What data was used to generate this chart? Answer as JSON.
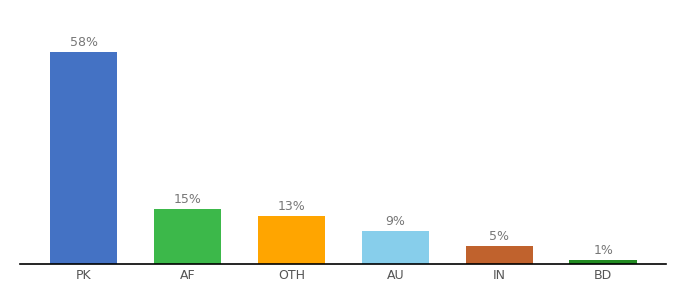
{
  "categories": [
    "PK",
    "AF",
    "OTH",
    "AU",
    "IN",
    "BD"
  ],
  "values": [
    58,
    15,
    13,
    9,
    5,
    1
  ],
  "bar_colors": [
    "#4472C4",
    "#3CB84A",
    "#FFA500",
    "#87CEEB",
    "#C0622D",
    "#228B22"
  ],
  "labels": [
    "58%",
    "15%",
    "13%",
    "9%",
    "5%",
    "1%"
  ],
  "ylim": [
    0,
    68
  ],
  "background_color": "#ffffff",
  "label_fontsize": 9,
  "tick_fontsize": 9,
  "bar_width": 0.65
}
